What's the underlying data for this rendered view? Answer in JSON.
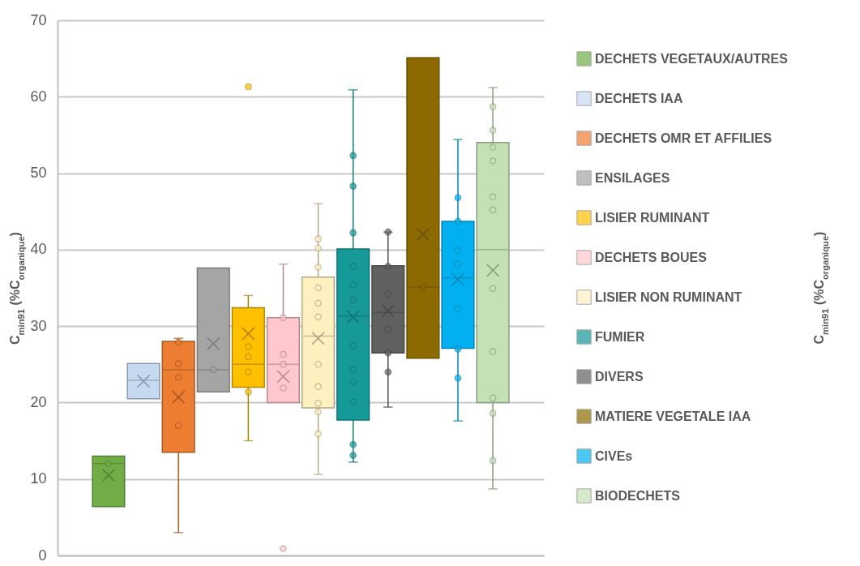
{
  "chart_data": {
    "type": "box",
    "ylabel": "C$_{min91}$ (%C$_{organique}$)",
    "annotations": [
      "C$_{min91}$ (%C$_{organique}$)"
    ],
    "categories": [
      null
    ],
    "ylim": [
      0,
      70
    ],
    "yticks": [
      0,
      10,
      20,
      30,
      40,
      50,
      60,
      70
    ],
    "grid": "y",
    "legend": "right",
    "series": [
      {
        "name": "DECHETS VEGETAUX/AUTRES",
        "color": "#70ad47",
        "boxes": [
          {
            "low": 6.4,
            "q1": 6.4,
            "median": 12,
            "q3": 13,
            "high": 13,
            "mean": 10.5,
            "outliers": [
              12
            ]
          }
        ]
      },
      {
        "name": "DECHETS IAA",
        "color": "#c5d9f1",
        "boxes": [
          {
            "low": 20.5,
            "q1": 20.5,
            "median": 22.9,
            "q3": 25.1,
            "high": 25.1,
            "mean": 22.8
          }
        ]
      },
      {
        "name": "DECHETS OMR ET AFFILIES",
        "color": "#ed7d31",
        "boxes": [
          {
            "low": 3,
            "q1": 13.5,
            "median": 24.3,
            "q3": 28,
            "high": 28.4,
            "mean": 20.7,
            "outliers": [
              27.9,
              25.1,
              23.3,
              17
            ]
          }
        ]
      },
      {
        "name": "ENSILAGES",
        "color": "#a5a5a5",
        "boxes": [
          {
            "low": 21.4,
            "q1": 21.4,
            "median": 24.3,
            "q3": 37.6,
            "high": 37.6,
            "mean": 27.7,
            "outliers": [
              24.3
            ]
          }
        ]
      },
      {
        "name": "LISIER RUMINANT",
        "color": "#ffc000",
        "boxes": [
          {
            "low": 15,
            "q1": 22,
            "median": 25,
            "q3": 32.4,
            "high": 34,
            "mean": 29,
            "outliers": [
              61.3,
              27.3,
              26,
              24,
              21.4
            ]
          }
        ]
      },
      {
        "name": "DECHETS BOUES",
        "color": "#ffc7ce",
        "boxes": [
          {
            "low": 20,
            "q1": 20,
            "median": 25,
            "q3": 31.1,
            "high": 38.1,
            "mean": 23.4,
            "outliers": [
              31.1,
              26.3,
              25,
              21.9,
              0.9
            ]
          }
        ]
      },
      {
        "name": "LISIER NON RUMINANT",
        "color": "#fff0c0",
        "boxes": [
          {
            "low": 10.6,
            "q1": 19.3,
            "median": 28.7,
            "q3": 36.4,
            "high": 46,
            "mean": 28.4,
            "outliers": [
              41.4,
              40.2,
              37.7,
              35,
              33,
              31.2,
              25,
              22.1,
              19.9,
              18.8,
              15.9
            ]
          }
        ]
      },
      {
        "name": "FUMIER",
        "color": "#17999a",
        "boxes": [
          {
            "low": 12.2,
            "q1": 17.7,
            "median": 31.3,
            "q3": 40.1,
            "high": 60.9,
            "mean": 31.2,
            "outliers": [
              52.3,
              48.3,
              42.2,
              37.8,
              35.4,
              33.4,
              27.4,
              24.3,
              22.7,
              20.1,
              14.5,
              13.1
            ]
          }
        ]
      },
      {
        "name": "DIVERS",
        "color": "#606060",
        "boxes": [
          {
            "low": 19.4,
            "q1": 26.5,
            "median": 31.8,
            "q3": 37.9,
            "high": 42.3,
            "mean": 32,
            "outliers": [
              42.3,
              37.8,
              34.2,
              29.6,
              26.5,
              24
            ]
          }
        ]
      },
      {
        "name": "MATIERE VEGETALE IAA",
        "color": "#8c6a00",
        "boxes": [
          {
            "low": 25.8,
            "q1": 25.8,
            "median": 35.1,
            "q3": 65.1,
            "high": 65.1,
            "mean": 42,
            "outliers": [
              35.1
            ]
          }
        ]
      },
      {
        "name": "CIVEs",
        "color": "#00b0f0",
        "boxes": [
          {
            "low": 17.6,
            "q1": 27.1,
            "median": 36.3,
            "q3": 43.7,
            "high": 54.4,
            "mean": 36.1,
            "outliers": [
              46.8,
              43.7,
              39.9,
              38.1,
              32.3,
              27,
              23.2
            ]
          }
        ]
      },
      {
        "name": "BIODECHETS",
        "color": "#c5e0b4",
        "boxes": [
          {
            "low": 8.7,
            "q1": 20,
            "median": 40,
            "q3": 54,
            "high": 61.2,
            "mean": 37.3,
            "outliers": [
              58.7,
              55.6,
              53.4,
              51.6,
              46.9,
              45.2,
              34.9,
              26.7,
              20.6,
              18.6,
              12.4
            ]
          }
        ]
      }
    ]
  }
}
